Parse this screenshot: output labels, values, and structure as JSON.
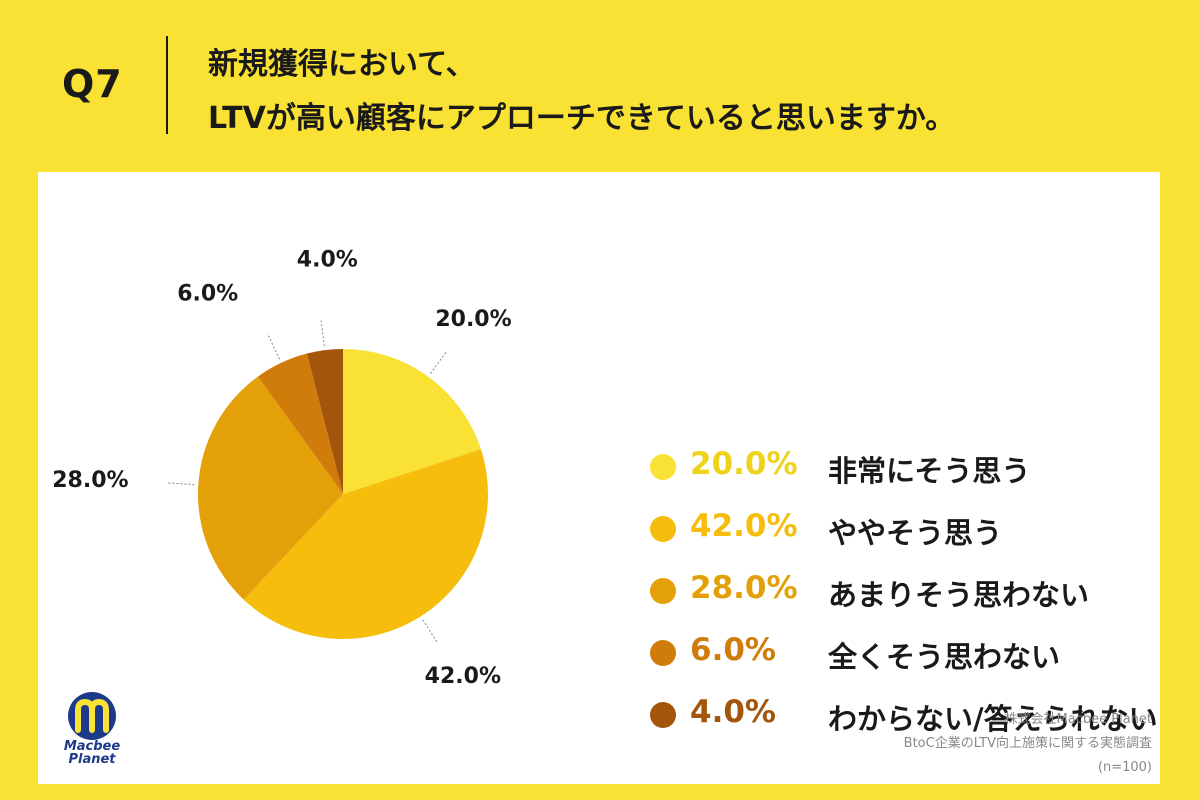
{
  "question": {
    "number": "Q7",
    "line1": "新規獲得において、",
    "line2": "LTVが高い顧客にアプローチできていると思いますか。"
  },
  "chart_data": {
    "type": "pie",
    "title": "新規獲得において、LTVが高い顧客にアプローチできていると思いますか。",
    "slices": [
      {
        "label": "非常にそう思う",
        "value": 20.0,
        "display": "20.0%",
        "color": "#f9e233"
      },
      {
        "label": "ややそう思う",
        "value": 42.0,
        "display": "42.0%",
        "color": "#f6bd0d"
      },
      {
        "label": "あまりそう思わない",
        "value": 28.0,
        "display": "28.0%",
        "color": "#e4a008"
      },
      {
        "label": "全くそう思わない",
        "value": 6.0,
        "display": "6.0%",
        "color": "#d07c0a"
      },
      {
        "label": "わからない/答えられない",
        "value": 4.0,
        "display": "4.0%",
        "color": "#a3550b"
      }
    ],
    "legend_position": "right"
  },
  "brand": {
    "logo_line1": "Macbee",
    "logo_line2": "Planet",
    "logo_color": "#1d3a8a",
    "logo_accent": "#f9e233"
  },
  "source": {
    "company": "株式会社Macbee Planet",
    "survey": "BtoC企業のLTV向上施策に関する実態調査",
    "n": "(n=100)"
  }
}
